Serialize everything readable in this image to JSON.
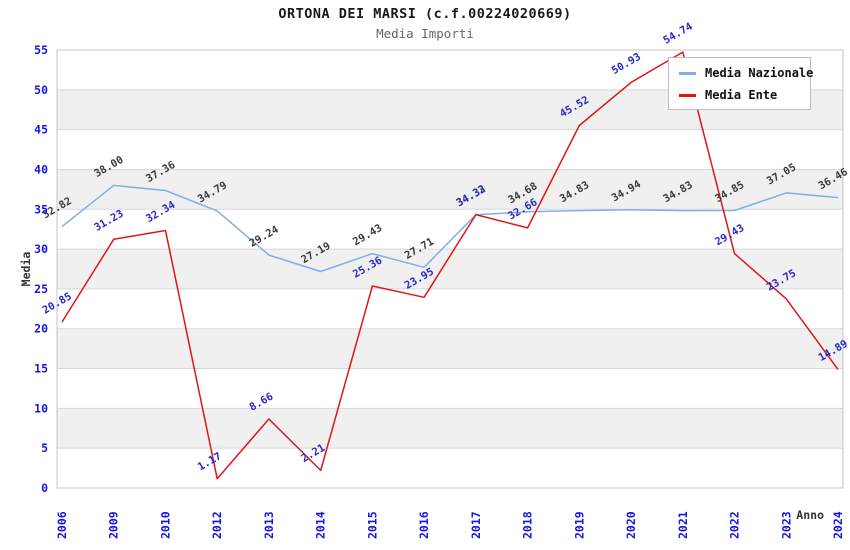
{
  "chart_data": {
    "type": "line",
    "title": "ORTONA DEI MARSI (c.f.00224020669)",
    "subtitle": "Media Importi",
    "xlabel": "Anno",
    "ylabel": "Media",
    "ylim": [
      0,
      55
    ],
    "ytick_step": 5,
    "yticks": [
      0,
      5,
      10,
      15,
      20,
      25,
      30,
      35,
      40,
      45,
      50,
      55
    ],
    "grid": true,
    "legend_position": "top-right",
    "categories": [
      "2006",
      "2009",
      "2010",
      "2012",
      "2013",
      "2014",
      "2015",
      "2016",
      "2017",
      "2018",
      "2019",
      "2020",
      "2021",
      "2022",
      "2023",
      "2024"
    ],
    "series": [
      {
        "name": "Media Nazionale",
        "color": "#7eb0e3",
        "label_color": "#3a3a3a",
        "values": [
          32.82,
          38.0,
          37.36,
          34.79,
          29.24,
          27.19,
          29.43,
          27.71,
          34.32,
          34.68,
          34.83,
          34.94,
          34.83,
          34.85,
          37.05,
          36.46
        ]
      },
      {
        "name": "Media Ente",
        "color": "#e01616",
        "label_color": "#2828c8",
        "values": [
          20.85,
          31.23,
          32.34,
          1.17,
          8.66,
          2.21,
          25.36,
          23.95,
          34.33,
          32.66,
          45.52,
          50.93,
          54.74,
          29.43,
          23.75,
          14.89
        ]
      }
    ],
    "colors": {
      "tick_label": "#1414e8",
      "band_gray": "#f0f0f0",
      "band_white": "#ffffff",
      "gridline": "#d8d8d8",
      "plot_border": "#c4c4c4",
      "title_text": "#1a1a1a",
      "subtitle_text": "#666666"
    }
  }
}
